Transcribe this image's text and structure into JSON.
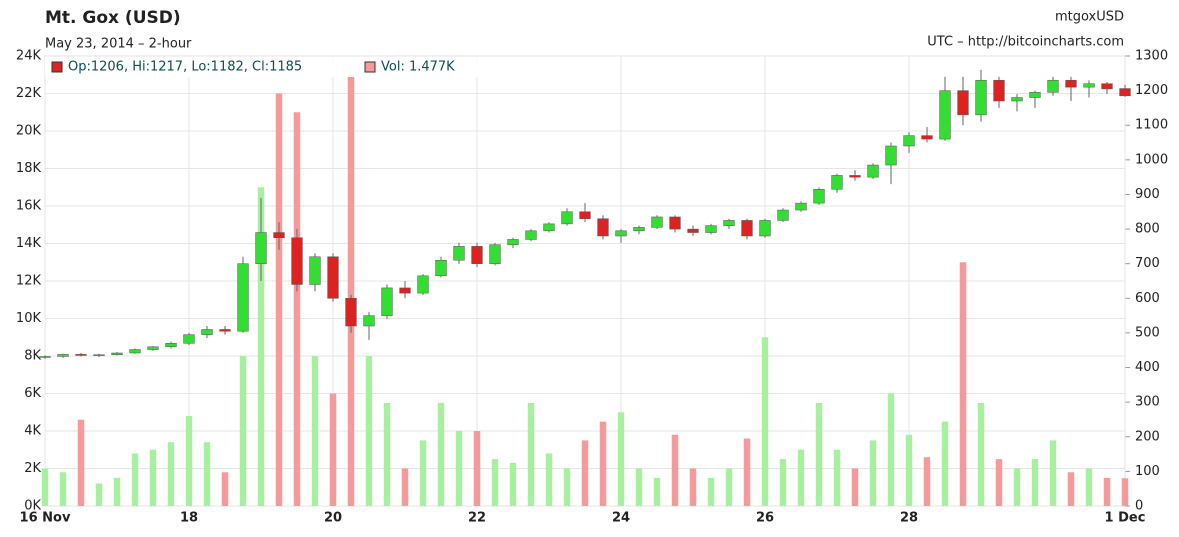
{
  "chart_data": {
    "type": "candlestick",
    "title": "Mt. Gox (USD)",
    "subtitle": "May 23, 2014 – 2-hour",
    "symbol": "mtgoxUSD",
    "source": "UTC – http://bitcoincharts.com",
    "x": [
      16,
      16.25,
      16.5,
      16.75,
      17,
      17.25,
      17.5,
      17.75,
      18,
      18.25,
      18.5,
      18.75,
      19,
      19.25,
      19.5,
      19.75,
      20,
      20.25,
      20.5,
      20.75,
      21,
      21.25,
      21.5,
      21.75,
      22,
      22.25,
      22.5,
      22.75,
      23,
      23.25,
      23.5,
      23.75,
      24,
      24.25,
      24.5,
      24.75,
      25,
      25.25,
      25.5,
      25.75,
      26,
      26.25,
      26.5,
      26.75,
      27,
      27.25,
      27.5,
      27.75,
      28,
      28.25,
      28.5,
      28.75,
      29,
      29.25,
      29.5,
      29.75,
      30,
      30.25,
      30.5,
      30.75,
      31
    ],
    "xlim": [
      16,
      31
    ],
    "xticks": [
      {
        "value": 16,
        "label": "16 Nov"
      },
      18,
      20,
      22,
      24,
      26,
      28,
      {
        "value": 31,
        "label": "1 Dec"
      }
    ],
    "ylim": [
      0,
      24000
    ],
    "yticks": [
      {
        "value": 0,
        "label": "0K"
      },
      {
        "value": 2000,
        "label": "2K"
      },
      {
        "value": 4000,
        "label": "4K"
      },
      {
        "value": 6000,
        "label": "6K"
      },
      {
        "value": 8000,
        "label": "8K"
      },
      {
        "value": 10000,
        "label": "10K"
      },
      {
        "value": 12000,
        "label": "12K"
      },
      {
        "value": 14000,
        "label": "14K"
      },
      {
        "value": 16000,
        "label": "16K"
      },
      {
        "value": 18000,
        "label": "18K"
      },
      {
        "value": 20000,
        "label": "20K"
      },
      {
        "value": 22000,
        "label": "22K"
      },
      {
        "value": 24000,
        "label": "24K"
      }
    ],
    "y2lim": [
      0,
      1300
    ],
    "y2ticks": [
      0,
      100,
      200,
      300,
      400,
      500,
      600,
      700,
      800,
      900,
      1000,
      1100,
      1200,
      1300
    ],
    "grid": true,
    "series": [
      {
        "name": "Op:1206, Hi:1217, Lo:1182, Cl:1185",
        "axis": "y2",
        "up_color": "#33dd33",
        "down_color": "#dd2222",
        "open": [
          430,
          432,
          438,
          435,
          437,
          442,
          452,
          460,
          470,
          495,
          510,
          505,
          700,
          790,
          775,
          640,
          720,
          600,
          520,
          550,
          630,
          615,
          665,
          710,
          750,
          700,
          755,
          770,
          795,
          815,
          850,
          830,
          780,
          795,
          805,
          835,
          800,
          790,
          810,
          825,
          780,
          825,
          855,
          875,
          915,
          955,
          950,
          985,
          1040,
          1070,
          1060,
          1200,
          1130,
          1230,
          1170,
          1180,
          1195,
          1230,
          1210,
          1220,
          1206
        ],
        "high": [
          435,
          440,
          442,
          440,
          445,
          455,
          462,
          475,
          500,
          520,
          520,
          720,
          890,
          820,
          800,
          730,
          730,
          610,
          560,
          640,
          650,
          670,
          720,
          760,
          760,
          760,
          775,
          800,
          820,
          860,
          875,
          840,
          800,
          810,
          840,
          840,
          810,
          815,
          830,
          830,
          830,
          860,
          880,
          920,
          960,
          970,
          990,
          1050,
          1080,
          1095,
          1240,
          1240,
          1260,
          1240,
          1190,
          1200,
          1240,
          1240,
          1230,
          1225,
          1217
        ],
        "low": [
          425,
          428,
          432,
          430,
          435,
          440,
          448,
          455,
          465,
          485,
          495,
          500,
          650,
          740,
          620,
          620,
          590,
          500,
          480,
          540,
          600,
          610,
          660,
          700,
          690,
          695,
          745,
          765,
          790,
          810,
          820,
          770,
          760,
          785,
          800,
          790,
          780,
          785,
          800,
          770,
          775,
          820,
          850,
          870,
          905,
          940,
          945,
          930,
          1020,
          1050,
          1055,
          1100,
          1110,
          1150,
          1140,
          1150,
          1185,
          1170,
          1180,
          1190,
          1182
        ],
        "close": [
          432,
          438,
          435,
          437,
          442,
          452,
          460,
          470,
          495,
          510,
          505,
          700,
          790,
          775,
          640,
          720,
          600,
          520,
          550,
          630,
          615,
          665,
          710,
          750,
          700,
          755,
          770,
          795,
          815,
          850,
          830,
          780,
          795,
          805,
          835,
          800,
          790,
          810,
          825,
          780,
          825,
          855,
          875,
          915,
          955,
          950,
          985,
          1040,
          1070,
          1060,
          1200,
          1130,
          1230,
          1170,
          1180,
          1195,
          1230,
          1210,
          1220,
          1205,
          1185
        ]
      },
      {
        "name": "Vol: 1.477K",
        "up_color": "#a6f0a0",
        "down_color": "#f49a9a",
        "values": [
          2000,
          1800,
          4600,
          1200,
          1500,
          2800,
          3000,
          3400,
          4800,
          3400,
          1800,
          8000,
          17000,
          22000,
          21000,
          8000,
          6000,
          23000,
          8000,
          5500,
          2000,
          3500,
          5500,
          4000,
          4000,
          2500,
          2300,
          5500,
          2800,
          2000,
          3500,
          4500,
          5000,
          2000,
          1500,
          3800,
          2000,
          1500,
          2000,
          3600,
          9000,
          2500,
          3000,
          5500,
          3000,
          2000,
          3500,
          6000,
          3800,
          2600,
          4500,
          13000,
          5500,
          2500,
          2000,
          2500,
          3500,
          1800,
          2000,
          1500,
          1477
        ]
      }
    ]
  }
}
